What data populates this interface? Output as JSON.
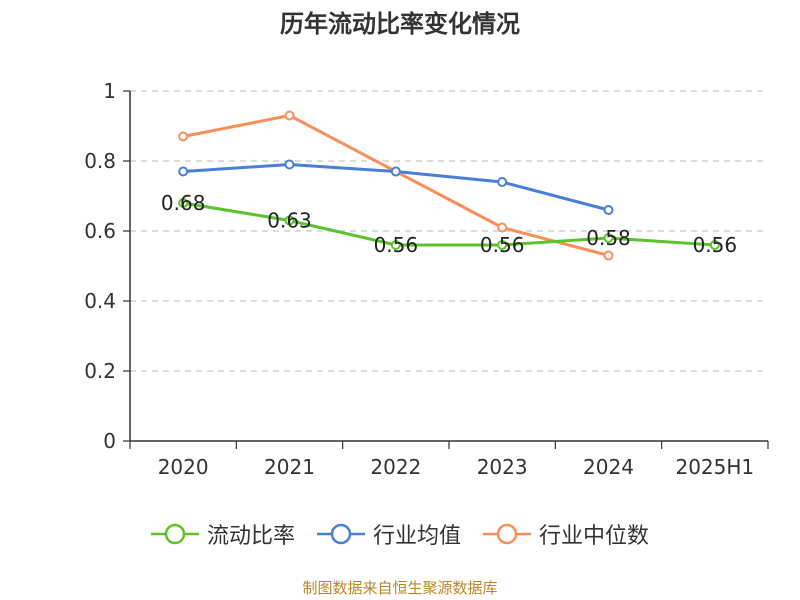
{
  "chart_data": {
    "type": "line",
    "title": "历年流动比率变化情况",
    "categories": [
      "2020",
      "2021",
      "2022",
      "2023",
      "2024",
      "2025H1"
    ],
    "ylim": [
      0,
      1
    ],
    "yticks": [
      0,
      0.2,
      0.4,
      0.6,
      0.8,
      1
    ],
    "ytick_labels": [
      "0",
      "0.2",
      "0.4",
      "0.6",
      "0.8",
      "1"
    ],
    "grid": true,
    "legend_position": "bottom",
    "series": [
      {
        "name": "流动比率",
        "color": "#5cc22d",
        "values": [
          0.68,
          0.63,
          0.56,
          0.56,
          0.58,
          0.56
        ],
        "labels": [
          "0.68",
          "0.63",
          "0.56",
          "0.56",
          "0.58",
          "0.56"
        ]
      },
      {
        "name": "行业均值",
        "color": "#4a7fd8",
        "values": [
          0.77,
          0.79,
          0.77,
          0.74,
          0.66,
          null
        ]
      },
      {
        "name": "行业中位数",
        "color": "#f88f5a",
        "values": [
          0.87,
          0.93,
          0.77,
          0.61,
          0.53,
          null
        ]
      }
    ]
  },
  "source": "制图数据来自恒生聚源数据库"
}
